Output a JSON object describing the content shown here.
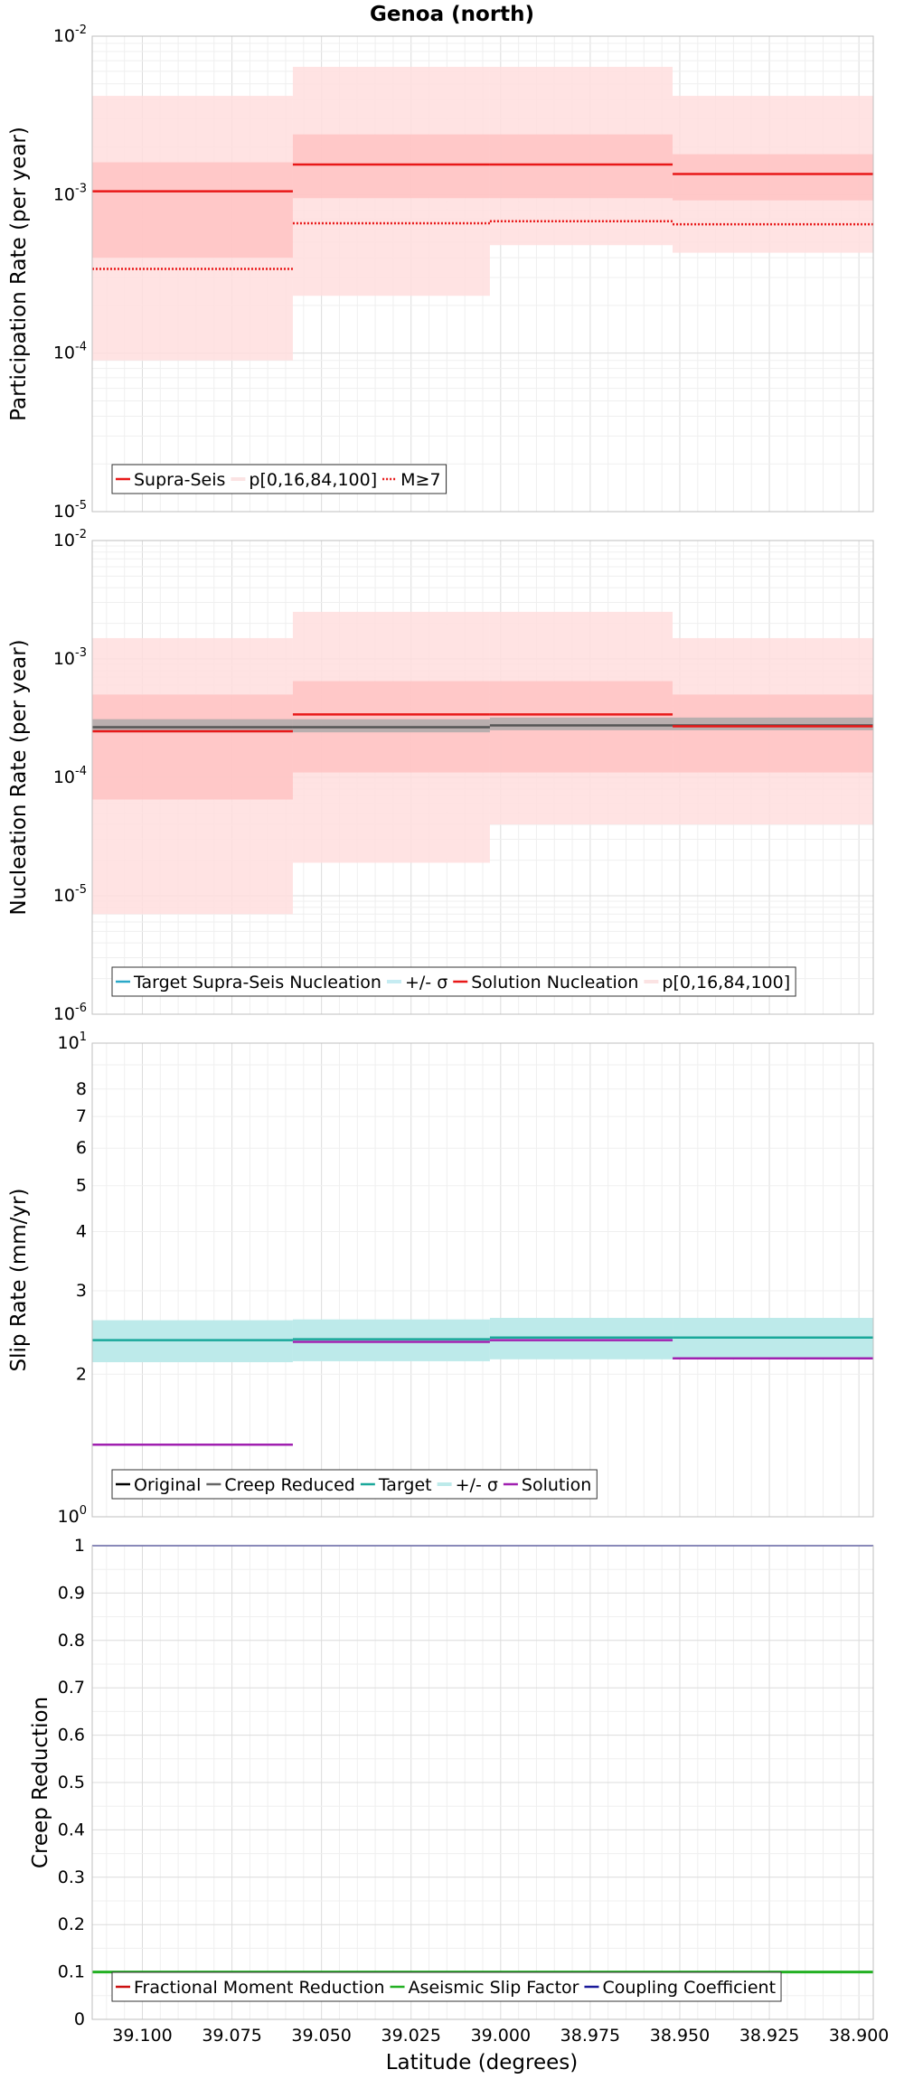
{
  "title": "Genoa (north)",
  "xlabel": "Latitude (degrees)",
  "x_ticks": [
    "39.100",
    "39.075",
    "39.050",
    "39.025",
    "39.000",
    "38.975",
    "38.950",
    "38.925",
    "38.900"
  ],
  "colors": {
    "supra": "#e81818",
    "band_light": "#ffdede",
    "band_dark": "#ffbfbf",
    "target_nuc": "#2aa8c8",
    "gray_band": "#a8a8a8",
    "creep_gray": "#666666",
    "target_slip": "#1aa89a",
    "sigma_band": "#bdeaea",
    "solution_slip": "#a020b0",
    "aseismic": "#22b022",
    "coupling": "#1a1a9a",
    "fractional": "#cc1010"
  },
  "chart_data": [
    {
      "id": "participation",
      "type": "line",
      "ylabel": "Participation Rate (per year)",
      "yscale": "log",
      "ylim": [
        1e-05,
        0.01
      ],
      "xlim": [
        39.114,
        38.896
      ],
      "y_ticks": [
        {
          "base": "10",
          "exp": "-5"
        },
        {
          "base": "10",
          "exp": "-4"
        },
        {
          "base": "10",
          "exp": "-3"
        },
        {
          "base": "10",
          "exp": "-2"
        }
      ],
      "legend": {
        "position": "bottom-left",
        "entries": [
          "Supra-Seis",
          "p[0,16,84,100]",
          "M≥7"
        ]
      },
      "segments": [
        {
          "x0": 39.114,
          "x1": 39.058,
          "supra": 0.00105,
          "m7": 0.00034,
          "p0": 9e-05,
          "p16": 0.0004,
          "p84": 0.0016,
          "p100": 0.0042
        },
        {
          "x0": 39.058,
          "x1": 39.003,
          "supra": 0.00155,
          "m7": 0.00066,
          "p0": 0.00023,
          "p16": 0.00095,
          "p84": 0.0024,
          "p100": 0.0064
        },
        {
          "x0": 39.003,
          "x1": 38.952,
          "supra": 0.00155,
          "m7": 0.00068,
          "p0": 0.00048,
          "p16": 0.00095,
          "p84": 0.0024,
          "p100": 0.0064
        },
        {
          "x0": 38.952,
          "x1": 38.896,
          "supra": 0.00135,
          "m7": 0.00065,
          "p0": 0.00043,
          "p16": 0.00092,
          "p84": 0.0018,
          "p100": 0.0042
        }
      ]
    },
    {
      "id": "nucleation",
      "type": "line",
      "ylabel": "Nucleation Rate (per year)",
      "yscale": "log",
      "ylim": [
        1e-06,
        0.01
      ],
      "xlim": [
        39.114,
        38.896
      ],
      "y_ticks": [
        {
          "base": "10",
          "exp": "-6"
        },
        {
          "base": "10",
          "exp": "-5"
        },
        {
          "base": "10",
          "exp": "-4"
        },
        {
          "base": "10",
          "exp": "-3"
        },
        {
          "base": "10",
          "exp": "-2"
        }
      ],
      "legend": {
        "position": "bottom-left",
        "entries": [
          "Target Supra-Seis Nucleation",
          "+/- σ",
          "Solution Nucleation",
          "p[0,16,84,100]"
        ]
      },
      "segments": [
        {
          "x0": 39.114,
          "x1": 39.058,
          "target": 0.000265,
          "sig_lo": 0.00024,
          "sig_hi": 0.00031,
          "solution": 0.000245,
          "p0": 7e-06,
          "p16": 6.5e-05,
          "p84": 0.0005,
          "p100": 0.0015
        },
        {
          "x0": 39.058,
          "x1": 39.003,
          "target": 0.000265,
          "sig_lo": 0.00024,
          "sig_hi": 0.00031,
          "solution": 0.00034,
          "p0": 1.9e-05,
          "p16": 0.00011,
          "p84": 0.00065,
          "p100": 0.0025
        },
        {
          "x0": 39.003,
          "x1": 38.952,
          "target": 0.000275,
          "sig_lo": 0.00025,
          "sig_hi": 0.00032,
          "solution": 0.00034,
          "p0": 4e-05,
          "p16": 0.00011,
          "p84": 0.00065,
          "p100": 0.0025
        },
        {
          "x0": 38.952,
          "x1": 38.896,
          "target": 0.000275,
          "sig_lo": 0.00025,
          "sig_hi": 0.00032,
          "solution": 0.00027,
          "p0": 4e-05,
          "p16": 0.00011,
          "p84": 0.0005,
          "p100": 0.0015
        }
      ]
    },
    {
      "id": "slip",
      "type": "line",
      "ylabel": "Slip Rate (mm/yr)",
      "yscale": "log",
      "ylim": [
        1,
        10
      ],
      "xlim": [
        39.114,
        38.896
      ],
      "y_ticks_major": [
        {
          "base": "10",
          "exp": "0"
        },
        {
          "base": "10",
          "exp": "1"
        }
      ],
      "y_ticks_minor": [
        {
          "value": 2,
          "label": "2"
        },
        {
          "value": 3,
          "label": "3"
        },
        {
          "value": 4,
          "label": "4"
        },
        {
          "value": 5,
          "label": "5"
        },
        {
          "value": 6,
          "label": "6"
        },
        {
          "value": 7,
          "label": "7"
        },
        {
          "value": 8,
          "label": "8"
        }
      ],
      "legend": {
        "position": "bottom-left",
        "entries": [
          "Original",
          "Creep Reduced",
          "Target",
          "+/- σ",
          "Solution"
        ]
      },
      "segments": [
        {
          "x0": 39.114,
          "x1": 39.058,
          "target": 2.36,
          "sig_lo": 2.12,
          "sig_hi": 2.6,
          "solution": 1.42
        },
        {
          "x0": 39.058,
          "x1": 39.003,
          "target": 2.37,
          "sig_lo": 2.13,
          "sig_hi": 2.61,
          "solution": 2.34
        },
        {
          "x0": 39.003,
          "x1": 38.952,
          "target": 2.39,
          "sig_lo": 2.15,
          "sig_hi": 2.63,
          "solution": 2.36
        },
        {
          "x0": 38.952,
          "x1": 38.896,
          "target": 2.39,
          "sig_lo": 2.15,
          "sig_hi": 2.63,
          "solution": 2.16
        }
      ]
    },
    {
      "id": "creep",
      "type": "line",
      "ylabel": "Creep Reduction",
      "yscale": "linear",
      "ylim": [
        0,
        1
      ],
      "xlim": [
        39.114,
        38.896
      ],
      "y_ticks": [
        "0",
        "0.1",
        "0.2",
        "0.3",
        "0.4",
        "0.5",
        "0.6",
        "0.7",
        "0.8",
        "0.9",
        "1"
      ],
      "legend": {
        "position": "bottom-left",
        "entries": [
          "Fractional Moment Reduction",
          "Aseismic Slip Factor",
          "Coupling Coefficient"
        ]
      },
      "series": [
        {
          "name": "Aseismic Slip Factor",
          "x": [
            39.114,
            38.896
          ],
          "values": [
            0.1,
            0.1
          ]
        },
        {
          "name": "Coupling Coefficient",
          "x": [
            39.114,
            38.896
          ],
          "values": [
            1.0,
            1.0
          ]
        }
      ]
    }
  ]
}
